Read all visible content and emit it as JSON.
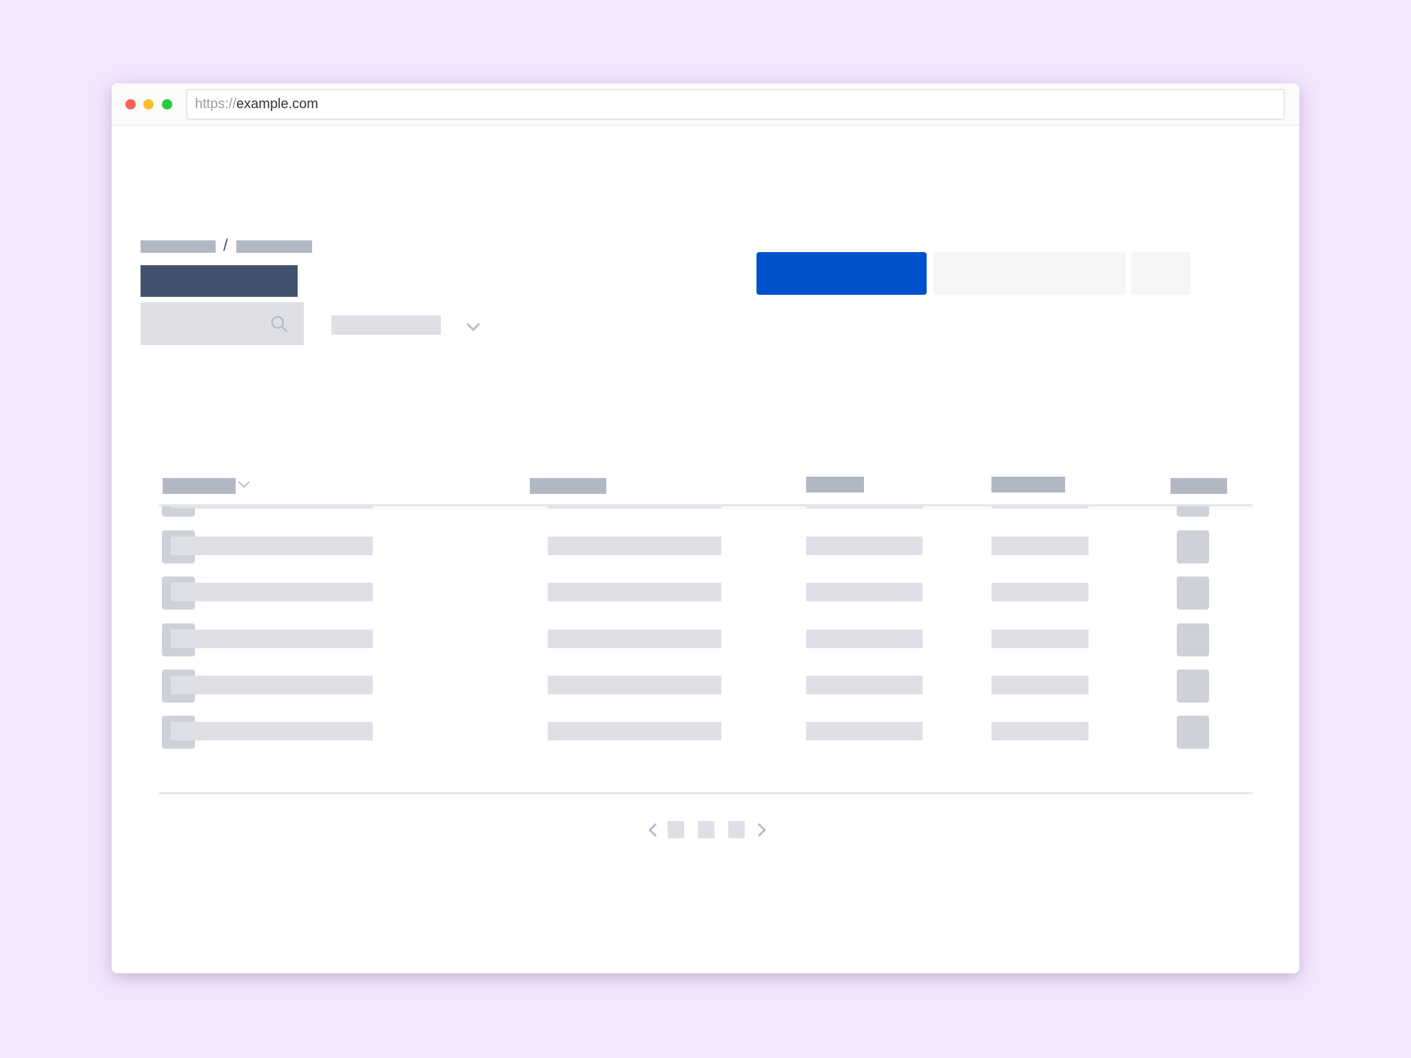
{
  "browser": {
    "url_scheme": "https://",
    "url_host": "example.com",
    "traffic_lights": {
      "close": "#ff5f57",
      "minimize": "#febc2e",
      "maximize": "#28c840"
    }
  },
  "page": {
    "breadcrumb_separator": "/",
    "title_color": "#42526e",
    "primary_button_color": "#0052cc",
    "search_icon": "search-icon",
    "filter_icon": "chevron-down-icon"
  },
  "table": {
    "columns": 5,
    "visible_rows": 7,
    "sort_icon": "chevron-down-icon"
  },
  "pagination": {
    "pages": 3,
    "prev_icon": "chevron-left-icon",
    "next_icon": "chevron-right-icon"
  }
}
